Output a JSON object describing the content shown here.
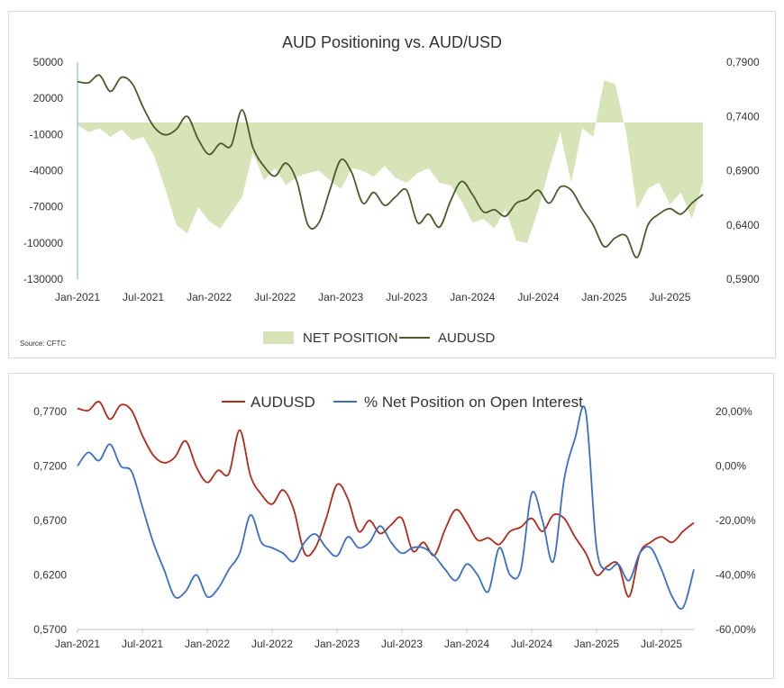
{
  "chart_data": [
    {
      "type": "line",
      "title": "AUD Positioning vs. AUD/USD",
      "source": "Source: CFTC",
      "x_ticks": [
        "Jan-2021",
        "Jul-2021",
        "Jan-2022",
        "Jul-2022",
        "Jan-2023",
        "Jul-2023",
        "Jan-2024",
        "Jul-2024",
        "Jan-2025",
        "Jul-2025"
      ],
      "y_left_ticks": [
        "50000",
        "20000",
        "-10000",
        "-40000",
        "-70000",
        "-100000",
        "-130000"
      ],
      "y_left_lim": [
        -130000,
        50000
      ],
      "y_right_ticks": [
        "0,7900",
        "0,7400",
        "0,6900",
        "0,6400",
        "0,5900"
      ],
      "y_right_lim": [
        0.59,
        0.79
      ],
      "legend": [
        "NET POSITION",
        "AUDUSD"
      ],
      "colors": {
        "net_position": "#d6e4b8",
        "audusd": "#4a5c2a"
      },
      "x_range": [
        "2021-01",
        "2025-10"
      ],
      "series": [
        {
          "name": "NET POSITION",
          "kind": "area",
          "axis": "left",
          "x": [
            "2021-01",
            "2021-02",
            "2021-03",
            "2021-04",
            "2021-05",
            "2021-06",
            "2021-07",
            "2021-08",
            "2021-09",
            "2021-10",
            "2021-11",
            "2021-12",
            "2022-01",
            "2022-02",
            "2022-03",
            "2022-04",
            "2022-05",
            "2022-06",
            "2022-07",
            "2022-08",
            "2022-09",
            "2022-10",
            "2022-11",
            "2022-12",
            "2023-01",
            "2023-02",
            "2023-03",
            "2023-04",
            "2023-05",
            "2023-06",
            "2023-07",
            "2023-08",
            "2023-09",
            "2023-10",
            "2023-11",
            "2023-12",
            "2024-01",
            "2024-02",
            "2024-03",
            "2024-04",
            "2024-05",
            "2024-06",
            "2024-07",
            "2024-08",
            "2024-09",
            "2024-10",
            "2024-11",
            "2024-12",
            "2025-01",
            "2025-02",
            "2025-03",
            "2025-04",
            "2025-05",
            "2025-06",
            "2025-07",
            "2025-08",
            "2025-09",
            "2025-10"
          ],
          "values": [
            -2000,
            -8000,
            -5000,
            -12000,
            -6000,
            -15000,
            -12000,
            -28000,
            -55000,
            -85000,
            -92000,
            -70000,
            -82000,
            -88000,
            -75000,
            -62000,
            -25000,
            -48000,
            -38000,
            -52000,
            -45000,
            -42000,
            -40000,
            -48000,
            -55000,
            -38000,
            -40000,
            -45000,
            -36000,
            -46000,
            -50000,
            -42000,
            -38000,
            -50000,
            -52000,
            -65000,
            -83000,
            -80000,
            -88000,
            -72000,
            -98000,
            -100000,
            -72000,
            -38000,
            -8000,
            -50000,
            -5000,
            -12000,
            35000,
            32000,
            -8000,
            -72000,
            -55000,
            -50000,
            -68000,
            -58000,
            -80000,
            -50000
          ]
        },
        {
          "name": "AUDUSD",
          "kind": "line",
          "axis": "right",
          "x": [
            "2021-01",
            "2021-02",
            "2021-03",
            "2021-04",
            "2021-05",
            "2021-06",
            "2021-07",
            "2021-08",
            "2021-09",
            "2021-10",
            "2021-11",
            "2021-12",
            "2022-01",
            "2022-02",
            "2022-03",
            "2022-04",
            "2022-05",
            "2022-06",
            "2022-07",
            "2022-08",
            "2022-09",
            "2022-10",
            "2022-11",
            "2022-12",
            "2023-01",
            "2023-02",
            "2023-03",
            "2023-04",
            "2023-05",
            "2023-06",
            "2023-07",
            "2023-08",
            "2023-09",
            "2023-10",
            "2023-11",
            "2023-12",
            "2024-01",
            "2024-02",
            "2024-03",
            "2024-04",
            "2024-05",
            "2024-06",
            "2024-07",
            "2024-08",
            "2024-09",
            "2024-10",
            "2024-11",
            "2024-12",
            "2025-01",
            "2025-02",
            "2025-03",
            "2025-04",
            "2025-05",
            "2025-06",
            "2025-07",
            "2025-08",
            "2025-09",
            "2025-10"
          ],
          "values": [
            0.772,
            0.771,
            0.778,
            0.763,
            0.776,
            0.77,
            0.748,
            0.73,
            0.723,
            0.728,
            0.74,
            0.719,
            0.705,
            0.715,
            0.713,
            0.746,
            0.711,
            0.694,
            0.685,
            0.697,
            0.68,
            0.64,
            0.642,
            0.672,
            0.7,
            0.688,
            0.66,
            0.67,
            0.658,
            0.666,
            0.672,
            0.642,
            0.65,
            0.638,
            0.662,
            0.68,
            0.668,
            0.652,
            0.654,
            0.648,
            0.66,
            0.664,
            0.672,
            0.66,
            0.675,
            0.672,
            0.655,
            0.64,
            0.62,
            0.628,
            0.63,
            0.61,
            0.64,
            0.65,
            0.655,
            0.65,
            0.66,
            0.668
          ]
        }
      ]
    },
    {
      "type": "line",
      "title": "",
      "x_ticks": [
        "Jan-2021",
        "Jul-2021",
        "Jan-2022",
        "Jul-2022",
        "Jan-2023",
        "Jul-2023",
        "Jan-2024",
        "Jul-2024",
        "Jan-2025",
        "Jul-2025"
      ],
      "y_left_ticks": [
        "0,7700",
        "0,7200",
        "0,6700",
        "0,6200",
        "0,5700"
      ],
      "y_left_lim": [
        0.57,
        0.77
      ],
      "y_right_ticks": [
        "20,00%",
        "0,00%",
        "-20,00%",
        "-40,00%",
        "-60,00%"
      ],
      "y_right_lim": [
        -60,
        20
      ],
      "legend": [
        "AUDUSD",
        "% Net Position on Open Interest"
      ],
      "colors": {
        "audusd": "#b22a1a",
        "net_pct": "#3a6fc4"
      },
      "x_range": [
        "2021-01",
        "2025-10"
      ],
      "series": [
        {
          "name": "AUDUSD",
          "axis": "left",
          "x": [
            "2021-01",
            "2021-02",
            "2021-03",
            "2021-04",
            "2021-05",
            "2021-06",
            "2021-07",
            "2021-08",
            "2021-09",
            "2021-10",
            "2021-11",
            "2021-12",
            "2022-01",
            "2022-02",
            "2022-03",
            "2022-04",
            "2022-05",
            "2022-06",
            "2022-07",
            "2022-08",
            "2022-09",
            "2022-10",
            "2022-11",
            "2022-12",
            "2023-01",
            "2023-02",
            "2023-03",
            "2023-04",
            "2023-05",
            "2023-06",
            "2023-07",
            "2023-08",
            "2023-09",
            "2023-10",
            "2023-11",
            "2023-12",
            "2024-01",
            "2024-02",
            "2024-03",
            "2024-04",
            "2024-05",
            "2024-06",
            "2024-07",
            "2024-08",
            "2024-09",
            "2024-10",
            "2024-11",
            "2024-12",
            "2025-01",
            "2025-02",
            "2025-03",
            "2025-04",
            "2025-05",
            "2025-06",
            "2025-07",
            "2025-08",
            "2025-09",
            "2025-10"
          ],
          "values": [
            0.773,
            0.771,
            0.779,
            0.763,
            0.776,
            0.771,
            0.748,
            0.73,
            0.723,
            0.728,
            0.743,
            0.719,
            0.705,
            0.716,
            0.713,
            0.753,
            0.711,
            0.694,
            0.685,
            0.698,
            0.68,
            0.64,
            0.645,
            0.672,
            0.703,
            0.69,
            0.66,
            0.67,
            0.658,
            0.666,
            0.672,
            0.642,
            0.65,
            0.638,
            0.662,
            0.68,
            0.668,
            0.652,
            0.654,
            0.648,
            0.66,
            0.664,
            0.672,
            0.66,
            0.675,
            0.672,
            0.655,
            0.64,
            0.62,
            0.628,
            0.63,
            0.6,
            0.64,
            0.65,
            0.655,
            0.65,
            0.66,
            0.668
          ]
        },
        {
          "name": "% Net Position on Open Interest",
          "axis": "right",
          "x": [
            "2021-01",
            "2021-02",
            "2021-03",
            "2021-04",
            "2021-05",
            "2021-06",
            "2021-07",
            "2021-08",
            "2021-09",
            "2021-10",
            "2021-11",
            "2021-12",
            "2022-01",
            "2022-02",
            "2022-03",
            "2022-04",
            "2022-05",
            "2022-06",
            "2022-07",
            "2022-08",
            "2022-09",
            "2022-10",
            "2022-11",
            "2022-12",
            "2023-01",
            "2023-02",
            "2023-03",
            "2023-04",
            "2023-05",
            "2023-06",
            "2023-07",
            "2023-08",
            "2023-09",
            "2023-10",
            "2023-11",
            "2023-12",
            "2024-01",
            "2024-02",
            "2024-03",
            "2024-04",
            "2024-05",
            "2024-06",
            "2024-07",
            "2024-08",
            "2024-09",
            "2024-10",
            "2024-11",
            "2024-12",
            "2025-01",
            "2025-02",
            "2025-03",
            "2025-04",
            "2025-05",
            "2025-06",
            "2025-07",
            "2025-08",
            "2025-09",
            "2025-10"
          ],
          "values": [
            0,
            5,
            2,
            8,
            0,
            -2,
            -15,
            -28,
            -38,
            -48,
            -46,
            -40,
            -48,
            -45,
            -38,
            -32,
            -18,
            -28,
            -30,
            -32,
            -35,
            -28,
            -25,
            -30,
            -33,
            -26,
            -30,
            -28,
            -22,
            -28,
            -32,
            -30,
            -30,
            -33,
            -38,
            -42,
            -36,
            -40,
            -46,
            -30,
            -40,
            -38,
            -10,
            -20,
            -35,
            -5,
            10,
            20,
            -30,
            -38,
            -36,
            -42,
            -32,
            -30,
            -38,
            -48,
            -52,
            -38
          ]
        }
      ]
    }
  ]
}
